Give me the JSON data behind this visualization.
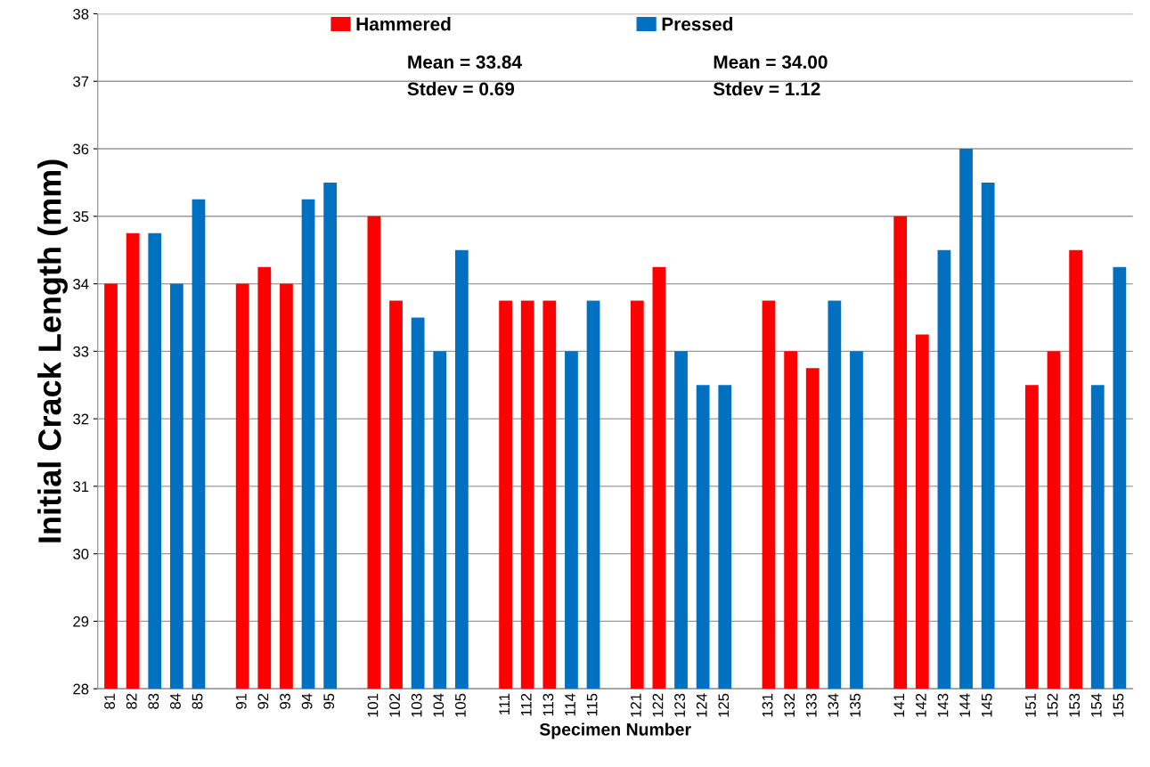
{
  "chart_data": {
    "type": "bar",
    "xlabel": "Specimen Number",
    "ylabel": "Initial Crack Length (mm)",
    "categories": [
      "81",
      "82",
      "83",
      "84",
      "85",
      null,
      "91",
      "92",
      "93",
      "94",
      "95",
      null,
      "101",
      "102",
      "103",
      "104",
      "105",
      null,
      "111",
      "112",
      "113",
      "114",
      "115",
      null,
      "121",
      "122",
      "123",
      "124",
      "125",
      null,
      "131",
      "132",
      "133",
      "134",
      "135",
      null,
      "141",
      "142",
      "143",
      "144",
      "145",
      null,
      "151",
      "152",
      "153",
      "154",
      "155"
    ],
    "series": [
      {
        "name": "Hammered",
        "color": "#ff0000",
        "values": [
          34,
          34.75,
          null,
          null,
          null,
          null,
          34,
          34.25,
          34,
          null,
          null,
          null,
          35,
          33.75,
          null,
          null,
          null,
          null,
          33.75,
          33.75,
          33.75,
          null,
          null,
          null,
          33.75,
          34.25,
          null,
          null,
          null,
          null,
          33.75,
          33,
          32.75,
          null,
          null,
          null,
          35,
          33.25,
          null,
          null,
          null,
          null,
          32.5,
          33,
          34.5,
          null,
          null
        ]
      },
      {
        "name": "Pressed",
        "color": "#0070c0",
        "values": [
          null,
          null,
          34.75,
          34,
          35.25,
          null,
          null,
          null,
          null,
          35.25,
          35.5,
          null,
          null,
          null,
          33.5,
          33,
          34.5,
          null,
          null,
          null,
          null,
          33,
          33.75,
          null,
          null,
          null,
          33,
          32.5,
          32.5,
          null,
          null,
          null,
          null,
          33.75,
          33,
          null,
          null,
          null,
          34.5,
          36,
          35.5,
          null,
          null,
          null,
          null,
          32.5,
          34.25
        ]
      }
    ],
    "annotations": [
      "Mean = 33.84",
      "Stdev = 0.69",
      "Mean = 34.00",
      "Stdev = 1.12"
    ],
    "ylim": [
      28,
      38
    ],
    "yticks": [
      28,
      29,
      30,
      31,
      32,
      33,
      34,
      35,
      36,
      37,
      38
    ],
    "grid": "y",
    "legend": "top"
  }
}
